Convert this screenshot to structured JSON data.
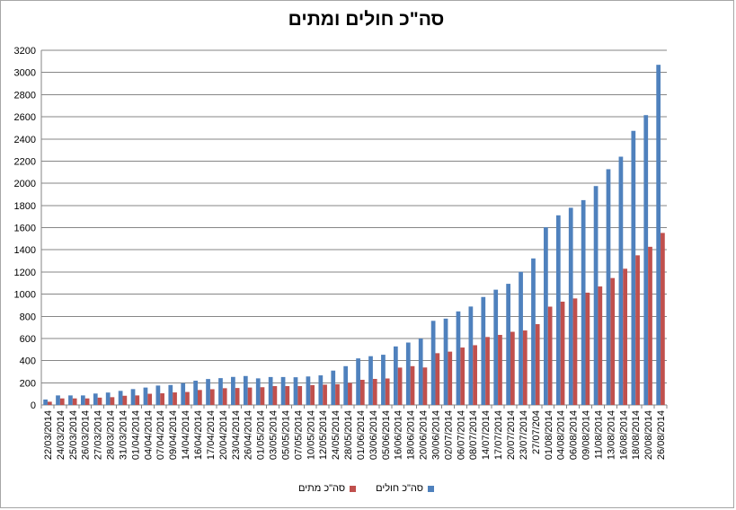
{
  "chart_data": {
    "type": "bar",
    "title": "סה\"כ חולים ומתים",
    "xlabel": "",
    "ylabel": "",
    "ylim": [
      0,
      3200
    ],
    "yticks": [
      0,
      200,
      400,
      600,
      800,
      1000,
      1200,
      1400,
      1600,
      1800,
      2000,
      2200,
      2400,
      2600,
      2800,
      3000,
      3200
    ],
    "grid": true,
    "legend_position": "bottom",
    "categories": [
      "22/03/2014",
      "24/03/2014",
      "25/03/2014",
      "26/03/2014",
      "27/03/2014",
      "28/03/2014",
      "31/03/2014",
      "01/04/2014",
      "04/04/2014",
      "07/04/2014",
      "09/04/2014",
      "14/04/2014",
      "16/04/2014",
      "17/04/2014",
      "20/04/2014",
      "23/04/2014",
      "26/04/2014",
      "01/05/2014",
      "03/05/2014",
      "05/05/2014",
      "07/05/2014",
      "10/05/2014",
      "12/05/2014",
      "24/05/2014",
      "28/05/2014",
      "01/06/2014",
      "03/06/2014",
      "05/06/2014",
      "16/06/2014",
      "18/06/2014",
      "20/06/2014",
      "30/06/2014",
      "02/07/2014",
      "06/07/2014",
      "08/07/2014",
      "14/07/2014",
      "17/07/2014",
      "20/07/2014",
      "23/07/2014",
      "27/07/204",
      "01/08/2014",
      "04/08/2014",
      "06/08/2014",
      "09/08/2014",
      "11/08/2014",
      "13/08/2014",
      "16/08/2014",
      "18/08/2014",
      "20/08/2014",
      "26/08/2014"
    ],
    "series": [
      {
        "name": "סה\"כ חולים",
        "color": "#4f81bd",
        "values": [
          49,
          86,
          86,
          86,
          103,
          112,
          127,
          143,
          157,
          175,
          180,
          197,
          219,
          234,
          242,
          253,
          261,
          240,
          252,
          252,
          250,
          257,
          267,
          310,
          350,
          420,
          440,
          453,
          528,
          563,
          599,
          759,
          779,
          844,
          888,
          974,
          1040,
          1093,
          1201,
          1322,
          1603,
          1711,
          1779,
          1848,
          1975,
          2127,
          2240,
          2473,
          2615,
          3069
        ]
      },
      {
        "name": "סה\"כ מתים",
        "color": "#c0504d",
        "values": [
          29,
          59,
          59,
          59,
          66,
          70,
          83,
          86,
          101,
          105,
          113,
          117,
          135,
          142,
          151,
          153,
          157,
          160,
          170,
          170,
          170,
          179,
          183,
          187,
          198,
          227,
          235,
          239,
          337,
          350,
          338,
          467,
          481,
          518,
          539,
          613,
          632,
          660,
          672,
          729,
          887,
          932,
          961,
          1013,
          1069,
          1145,
          1229,
          1350,
          1427,
          1552
        ]
      }
    ]
  }
}
